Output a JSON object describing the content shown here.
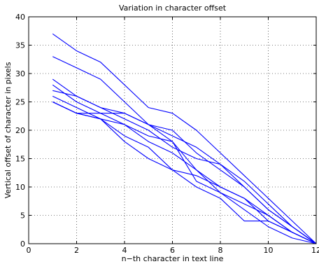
{
  "chart_data": {
    "type": "line",
    "title": "Variation in character offset",
    "xlabel": "n−th character in text line",
    "ylabel": "Vertical offset of character in pixels",
    "xlim": [
      0,
      12
    ],
    "ylim": [
      0,
      40
    ],
    "xticks": [
      "0",
      "2",
      "4",
      "6",
      "8",
      "10",
      "12"
    ],
    "yticks": [
      "0",
      "5",
      "10",
      "15",
      "20",
      "25",
      "30",
      "35",
      "40"
    ],
    "grid": true,
    "line_color": "#0000ff",
    "series": [
      {
        "x": [
          1,
          2,
          3,
          4,
          5,
          6,
          7,
          8,
          9,
          10,
          11,
          12
        ],
        "y": [
          37,
          34,
          32,
          28,
          24,
          23,
          20,
          16,
          12,
          8,
          4,
          0
        ]
      },
      {
        "x": [
          1,
          2,
          3,
          4,
          5,
          6,
          7,
          8,
          9,
          10,
          11,
          12
        ],
        "y": [
          33,
          31,
          29,
          25,
          21,
          19,
          17,
          14,
          11,
          7,
          3,
          0
        ]
      },
      {
        "x": [
          1,
          2,
          3,
          4,
          5,
          6,
          7,
          8,
          9,
          10,
          11,
          12
        ],
        "y": [
          29,
          26,
          24,
          23,
          21,
          20,
          16,
          13,
          10,
          6,
          3,
          0
        ]
      },
      {
        "x": [
          1,
          2,
          3,
          4,
          5,
          6,
          7,
          8,
          9,
          10,
          11,
          12
        ],
        "y": [
          28,
          25,
          23,
          21,
          19,
          18,
          13,
          10,
          8,
          5,
          2,
          0
        ]
      },
      {
        "x": [
          1,
          2,
          3,
          4,
          5,
          6,
          7,
          8,
          9,
          10,
          11,
          12
        ],
        "y": [
          27,
          26,
          24,
          22,
          20,
          17,
          15,
          14,
          10,
          6,
          3,
          0
        ]
      },
      {
        "x": [
          1,
          2,
          3,
          4,
          5,
          6,
          7,
          8,
          9,
          10,
          11,
          12
        ],
        "y": [
          26,
          24,
          22,
          21,
          18,
          16,
          13,
          9,
          7,
          5,
          2,
          0
        ]
      },
      {
        "x": [
          1,
          2,
          3,
          4,
          5,
          6,
          7,
          8,
          9,
          10,
          11,
          12
        ],
        "y": [
          25,
          23,
          23,
          23,
          21,
          18,
          11,
          9,
          6,
          3,
          1,
          0
        ]
      },
      {
        "x": [
          1,
          2,
          3,
          4,
          5,
          6,
          7,
          8,
          9,
          10,
          11,
          12
        ],
        "y": [
          25,
          23,
          22,
          19,
          17,
          13,
          12,
          10,
          8,
          4,
          2,
          0
        ]
      },
      {
        "x": [
          1,
          2,
          3,
          4,
          5,
          6,
          7,
          8,
          9,
          10,
          11,
          12
        ],
        "y": [
          25,
          23,
          22,
          18,
          15,
          13,
          10,
          8,
          4,
          4,
          2,
          0
        ]
      }
    ]
  }
}
